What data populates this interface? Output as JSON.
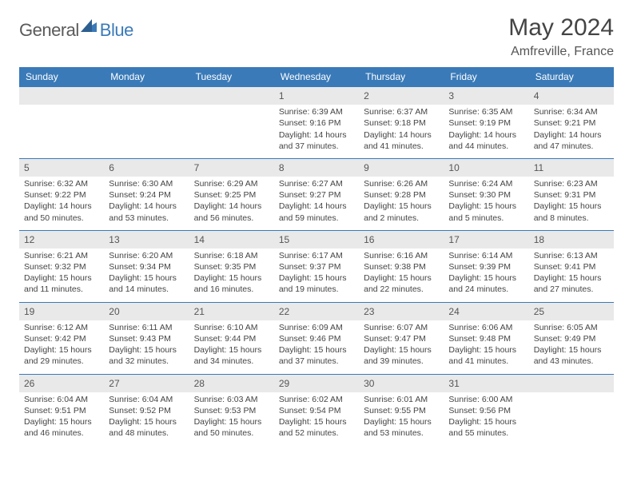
{
  "brand": {
    "part1": "General",
    "part2": "Blue"
  },
  "title": "May 2024",
  "location": "Amfreville, France",
  "colors": {
    "header_bg": "#3a7ab8",
    "header_fg": "#ffffff",
    "daynum_bg": "#e9e9e9",
    "cell_border": "#3a7ab8",
    "text": "#444444",
    "background": "#ffffff"
  },
  "fonts": {
    "title_size": 30,
    "location_size": 16,
    "dayhead_size": 12,
    "cell_size": 10.5
  },
  "day_labels": [
    "Sunday",
    "Monday",
    "Tuesday",
    "Wednesday",
    "Thursday",
    "Friday",
    "Saturday"
  ],
  "weeks": [
    [
      null,
      null,
      null,
      {
        "n": "1",
        "rise": "Sunrise: 6:39 AM",
        "set": "Sunset: 9:16 PM",
        "dl1": "Daylight: 14 hours",
        "dl2": "and 37 minutes."
      },
      {
        "n": "2",
        "rise": "Sunrise: 6:37 AM",
        "set": "Sunset: 9:18 PM",
        "dl1": "Daylight: 14 hours",
        "dl2": "and 41 minutes."
      },
      {
        "n": "3",
        "rise": "Sunrise: 6:35 AM",
        "set": "Sunset: 9:19 PM",
        "dl1": "Daylight: 14 hours",
        "dl2": "and 44 minutes."
      },
      {
        "n": "4",
        "rise": "Sunrise: 6:34 AM",
        "set": "Sunset: 9:21 PM",
        "dl1": "Daylight: 14 hours",
        "dl2": "and 47 minutes."
      }
    ],
    [
      {
        "n": "5",
        "rise": "Sunrise: 6:32 AM",
        "set": "Sunset: 9:22 PM",
        "dl1": "Daylight: 14 hours",
        "dl2": "and 50 minutes."
      },
      {
        "n": "6",
        "rise": "Sunrise: 6:30 AM",
        "set": "Sunset: 9:24 PM",
        "dl1": "Daylight: 14 hours",
        "dl2": "and 53 minutes."
      },
      {
        "n": "7",
        "rise": "Sunrise: 6:29 AM",
        "set": "Sunset: 9:25 PM",
        "dl1": "Daylight: 14 hours",
        "dl2": "and 56 minutes."
      },
      {
        "n": "8",
        "rise": "Sunrise: 6:27 AM",
        "set": "Sunset: 9:27 PM",
        "dl1": "Daylight: 14 hours",
        "dl2": "and 59 minutes."
      },
      {
        "n": "9",
        "rise": "Sunrise: 6:26 AM",
        "set": "Sunset: 9:28 PM",
        "dl1": "Daylight: 15 hours",
        "dl2": "and 2 minutes."
      },
      {
        "n": "10",
        "rise": "Sunrise: 6:24 AM",
        "set": "Sunset: 9:30 PM",
        "dl1": "Daylight: 15 hours",
        "dl2": "and 5 minutes."
      },
      {
        "n": "11",
        "rise": "Sunrise: 6:23 AM",
        "set": "Sunset: 9:31 PM",
        "dl1": "Daylight: 15 hours",
        "dl2": "and 8 minutes."
      }
    ],
    [
      {
        "n": "12",
        "rise": "Sunrise: 6:21 AM",
        "set": "Sunset: 9:32 PM",
        "dl1": "Daylight: 15 hours",
        "dl2": "and 11 minutes."
      },
      {
        "n": "13",
        "rise": "Sunrise: 6:20 AM",
        "set": "Sunset: 9:34 PM",
        "dl1": "Daylight: 15 hours",
        "dl2": "and 14 minutes."
      },
      {
        "n": "14",
        "rise": "Sunrise: 6:18 AM",
        "set": "Sunset: 9:35 PM",
        "dl1": "Daylight: 15 hours",
        "dl2": "and 16 minutes."
      },
      {
        "n": "15",
        "rise": "Sunrise: 6:17 AM",
        "set": "Sunset: 9:37 PM",
        "dl1": "Daylight: 15 hours",
        "dl2": "and 19 minutes."
      },
      {
        "n": "16",
        "rise": "Sunrise: 6:16 AM",
        "set": "Sunset: 9:38 PM",
        "dl1": "Daylight: 15 hours",
        "dl2": "and 22 minutes."
      },
      {
        "n": "17",
        "rise": "Sunrise: 6:14 AM",
        "set": "Sunset: 9:39 PM",
        "dl1": "Daylight: 15 hours",
        "dl2": "and 24 minutes."
      },
      {
        "n": "18",
        "rise": "Sunrise: 6:13 AM",
        "set": "Sunset: 9:41 PM",
        "dl1": "Daylight: 15 hours",
        "dl2": "and 27 minutes."
      }
    ],
    [
      {
        "n": "19",
        "rise": "Sunrise: 6:12 AM",
        "set": "Sunset: 9:42 PM",
        "dl1": "Daylight: 15 hours",
        "dl2": "and 29 minutes."
      },
      {
        "n": "20",
        "rise": "Sunrise: 6:11 AM",
        "set": "Sunset: 9:43 PM",
        "dl1": "Daylight: 15 hours",
        "dl2": "and 32 minutes."
      },
      {
        "n": "21",
        "rise": "Sunrise: 6:10 AM",
        "set": "Sunset: 9:44 PM",
        "dl1": "Daylight: 15 hours",
        "dl2": "and 34 minutes."
      },
      {
        "n": "22",
        "rise": "Sunrise: 6:09 AM",
        "set": "Sunset: 9:46 PM",
        "dl1": "Daylight: 15 hours",
        "dl2": "and 37 minutes."
      },
      {
        "n": "23",
        "rise": "Sunrise: 6:07 AM",
        "set": "Sunset: 9:47 PM",
        "dl1": "Daylight: 15 hours",
        "dl2": "and 39 minutes."
      },
      {
        "n": "24",
        "rise": "Sunrise: 6:06 AM",
        "set": "Sunset: 9:48 PM",
        "dl1": "Daylight: 15 hours",
        "dl2": "and 41 minutes."
      },
      {
        "n": "25",
        "rise": "Sunrise: 6:05 AM",
        "set": "Sunset: 9:49 PM",
        "dl1": "Daylight: 15 hours",
        "dl2": "and 43 minutes."
      }
    ],
    [
      {
        "n": "26",
        "rise": "Sunrise: 6:04 AM",
        "set": "Sunset: 9:51 PM",
        "dl1": "Daylight: 15 hours",
        "dl2": "and 46 minutes."
      },
      {
        "n": "27",
        "rise": "Sunrise: 6:04 AM",
        "set": "Sunset: 9:52 PM",
        "dl1": "Daylight: 15 hours",
        "dl2": "and 48 minutes."
      },
      {
        "n": "28",
        "rise": "Sunrise: 6:03 AM",
        "set": "Sunset: 9:53 PM",
        "dl1": "Daylight: 15 hours",
        "dl2": "and 50 minutes."
      },
      {
        "n": "29",
        "rise": "Sunrise: 6:02 AM",
        "set": "Sunset: 9:54 PM",
        "dl1": "Daylight: 15 hours",
        "dl2": "and 52 minutes."
      },
      {
        "n": "30",
        "rise": "Sunrise: 6:01 AM",
        "set": "Sunset: 9:55 PM",
        "dl1": "Daylight: 15 hours",
        "dl2": "and 53 minutes."
      },
      {
        "n": "31",
        "rise": "Sunrise: 6:00 AM",
        "set": "Sunset: 9:56 PM",
        "dl1": "Daylight: 15 hours",
        "dl2": "and 55 minutes."
      },
      null
    ]
  ]
}
